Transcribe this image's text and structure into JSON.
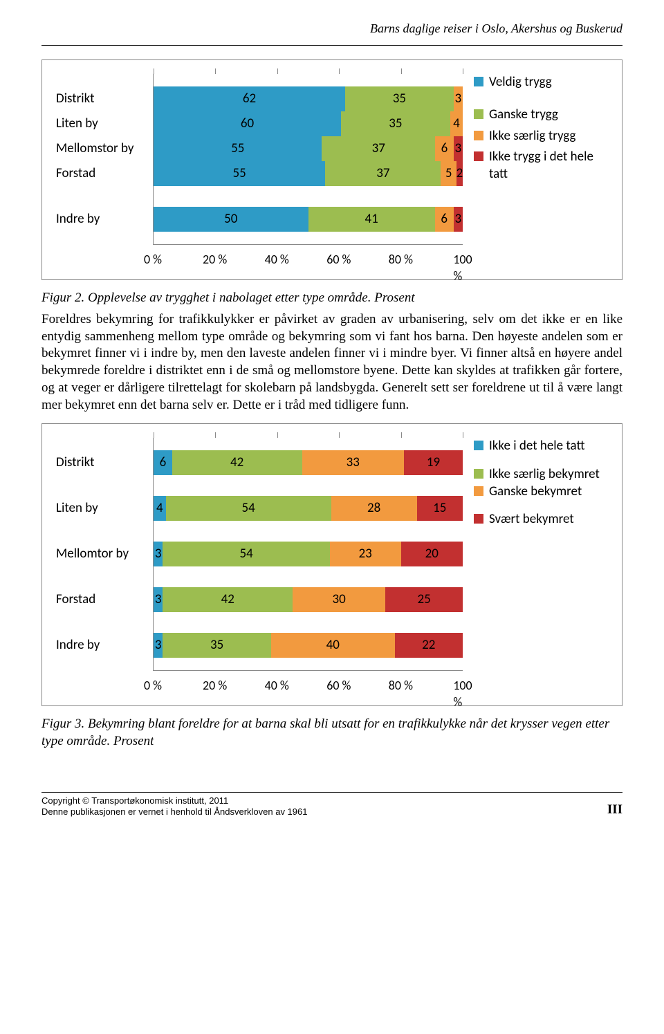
{
  "doc_header": "Barns daglige reiser i Oslo, Akershus og Buskerud",
  "colors": {
    "blue": "#2e9bc6",
    "green": "#9cbd50",
    "orange": "#f29a3f",
    "red": "#c23030",
    "text": "#000000",
    "border": "#888888",
    "bg": "#ffffff"
  },
  "chart1": {
    "type": "stacked-horizontal-bar",
    "x_ticks": [
      "0 %",
      "20 %",
      "40 %",
      "60 %",
      "80 %",
      "100 %"
    ],
    "label_fontsize": 19,
    "value_fontsize": 19,
    "series_colors": [
      "#2e9bc6",
      "#9cbd50",
      "#f29a3f",
      "#c23030"
    ],
    "gap_after": "Forstad",
    "rows": [
      {
        "label": "Distrikt",
        "values": [
          62,
          35,
          3,
          0
        ],
        "show": [
          true,
          true,
          true,
          false
        ]
      },
      {
        "label": "Liten by",
        "values": [
          60,
          35,
          4,
          0
        ],
        "show": [
          true,
          true,
          true,
          false
        ]
      },
      {
        "label": "Mellomstor by",
        "values": [
          55,
          37,
          6,
          3
        ],
        "show": [
          true,
          true,
          true,
          true
        ]
      },
      {
        "label": "Forstad",
        "values": [
          55,
          37,
          5,
          2
        ],
        "show": [
          true,
          true,
          true,
          true
        ]
      },
      {
        "label": "Indre by",
        "values": [
          50,
          41,
          6,
          3
        ],
        "show": [
          true,
          true,
          true,
          true
        ]
      }
    ],
    "legend": [
      {
        "label": "Veldig trygg",
        "color": "#2e9bc6",
        "gap_after": 22
      },
      {
        "label": "Ganske trygg",
        "color": "#9cbd50",
        "gap_after": 6
      },
      {
        "label": "Ikke særlig trygg",
        "color": "#f29a3f",
        "gap_after": 6
      },
      {
        "label": "Ikke trygg i det hele tatt",
        "color": "#c23030",
        "gap_after": 0
      }
    ]
  },
  "caption1": "Figur 2. Opplevelse av trygghet i nabolaget etter type område. Prosent",
  "paragraph": "Foreldres bekymring for trafikkulykker er påvirket av graden av urbanisering, selv om det ikke er en like entydig sammenheng mellom type område og bekymring som vi fant hos barna. Den høyeste andelen som er bekymret finner vi i indre by, men den laveste andelen finner vi i mindre byer. Vi finner altså en høyere andel bekymrede foreldre i distriktet enn i de små og mellomstore byene. Dette kan skyldes at trafikken går fortere, og at veger er dårligere tilrettelagt for skolebarn på landsbygda. Generelt sett ser foreldrene ut til å være langt mer bekymret enn det barna selv er. Dette er  i tråd med tidligere funn.",
  "chart2": {
    "type": "stacked-horizontal-bar",
    "x_ticks": [
      "0 %",
      "20 %",
      "40 %",
      "60 %",
      "80 %",
      "100 %"
    ],
    "label_fontsize": 19,
    "value_fontsize": 19,
    "series_colors": [
      "#2e9bc6",
      "#9cbd50",
      "#f29a3f",
      "#c23030"
    ],
    "gap_every": true,
    "rows": [
      {
        "label": "Distrikt",
        "values": [
          6,
          42,
          33,
          19
        ],
        "show": [
          true,
          true,
          true,
          true
        ]
      },
      {
        "label": "Liten by",
        "values": [
          4,
          54,
          28,
          15
        ],
        "show": [
          true,
          true,
          true,
          true
        ]
      },
      {
        "label": "Mellomtor by",
        "values": [
          3,
          54,
          23,
          20
        ],
        "show": [
          true,
          true,
          true,
          true
        ]
      },
      {
        "label": "Forstad",
        "values": [
          3,
          42,
          30,
          25
        ],
        "show": [
          true,
          true,
          true,
          true
        ]
      },
      {
        "label": "Indre by",
        "values": [
          3,
          35,
          40,
          22
        ],
        "show": [
          true,
          true,
          true,
          true
        ]
      }
    ],
    "legend": [
      {
        "label": "Ikke i det hele tatt",
        "color": "#2e9bc6",
        "gap_after": 16
      },
      {
        "label": "Ikke særlig bekymret",
        "color": "#9cbd50",
        "gap_after": 0
      },
      {
        "label": "Ganske bekymret",
        "color": "#f29a3f",
        "gap_after": 16
      },
      {
        "label": "Svært bekymret",
        "color": "#c23030",
        "gap_after": 0
      }
    ]
  },
  "caption2": "Figur 3. Bekymring blant foreldre for at barna skal bli utsatt for en trafikkulykke når det krysser vegen etter type område. Prosent",
  "footer": {
    "line1": "Copyright © Transportøkonomisk institutt, 2011",
    "line2": "Denne publikasjonen er vernet i henhold til Åndsverkloven av 1961",
    "page": "III"
  }
}
